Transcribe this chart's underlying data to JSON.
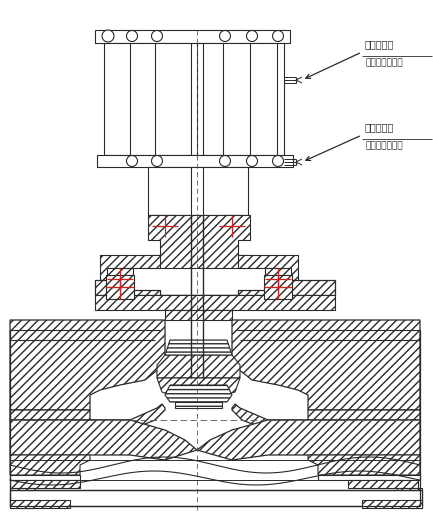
{
  "bg_color": "white",
  "lc": "#2a2a2a",
  "red": "#cc2222",
  "label1_title": "上进气源管",
  "label1_sub": "进气源、阀关闭",
  "label2_title": "下进气源管",
  "label2_sub": "进气源、阀开启",
  "figsize": [
    4.33,
    5.26
  ],
  "dpi": 100
}
